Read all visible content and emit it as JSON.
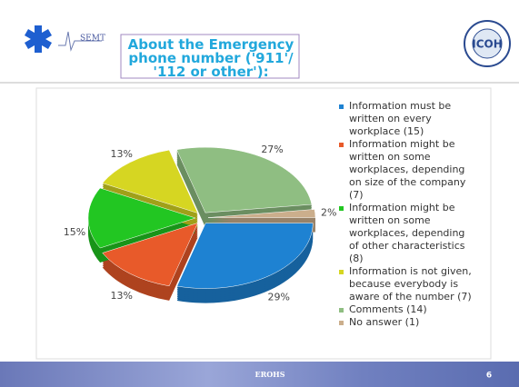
{
  "header": {
    "title": "About the  Emergency phone number  ('911'/ '112 or other'):",
    "logo_left": "SEMT",
    "logo_right": "ICOH"
  },
  "footer": {
    "text": "EROHS",
    "page": "6"
  },
  "chart_data": {
    "type": "pie",
    "categories": [
      "Information must be written on every workplace (15)",
      "Information might be written on some workplaces, depending on size of the company (7)",
      "Information might be written on some workplaces, depending of other characteristics (8)",
      "Information is not given, because everybody is aware of the number (7)",
      "Comments (14)",
      "No answer (1)"
    ],
    "values": [
      29,
      13,
      15,
      13,
      27,
      2
    ],
    "value_labels": [
      "29%",
      "13%",
      "15%",
      "13%",
      "27%",
      "2%"
    ],
    "colors": [
      "#1e82d2",
      "#e85a2a",
      "#22c622",
      "#d6d622",
      "#8fbe82",
      "#cbae8c"
    ],
    "legend": "right"
  }
}
